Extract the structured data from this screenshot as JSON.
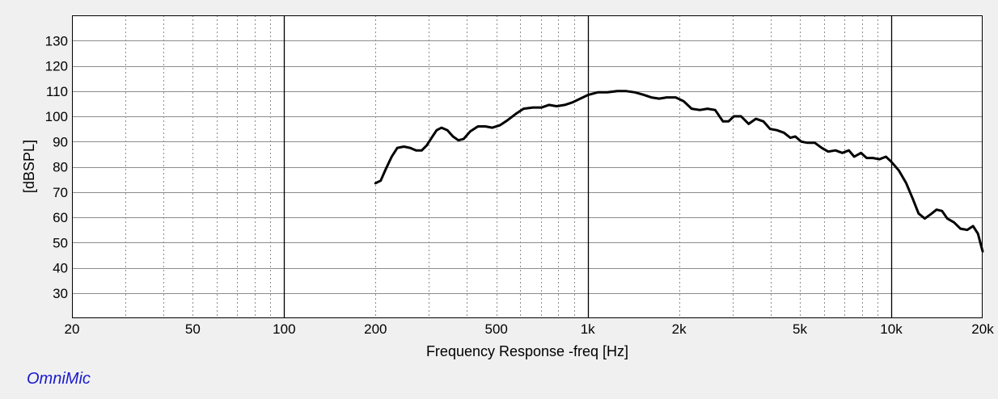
{
  "brand": "OmniMic",
  "colors": {
    "background": "#f0f0f0",
    "plot_background": "#ffffff",
    "trace": "#000000",
    "brand": "#1a1acc"
  },
  "chart_data": {
    "type": "line",
    "title": "",
    "xlabel": "Frequency Response -freq [Hz]",
    "ylabel": "[dBSPL]",
    "xscale": "log",
    "xlim": [
      20,
      20000
    ],
    "ylim": [
      20,
      140
    ],
    "grid": true,
    "x_ticks": [
      {
        "value": 20,
        "label": "20"
      },
      {
        "value": 50,
        "label": "50"
      },
      {
        "value": 100,
        "label": "100"
      },
      {
        "value": 200,
        "label": "200"
      },
      {
        "value": 500,
        "label": "500"
      },
      {
        "value": 1000,
        "label": "1k"
      },
      {
        "value": 2000,
        "label": "2k"
      },
      {
        "value": 5000,
        "label": "5k"
      },
      {
        "value": 10000,
        "label": "10k"
      },
      {
        "value": 20000,
        "label": "20k"
      }
    ],
    "y_ticks": [
      30,
      40,
      50,
      60,
      70,
      80,
      90,
      100,
      110,
      120,
      130
    ],
    "series": [
      {
        "color": "#000000",
        "points": [
          [
            200,
            73.5
          ],
          [
            208,
            74.5
          ],
          [
            216,
            79
          ],
          [
            226,
            84
          ],
          [
            236,
            87.5
          ],
          [
            248,
            88
          ],
          [
            260,
            87.5
          ],
          [
            272,
            86.5
          ],
          [
            284,
            86.5
          ],
          [
            295,
            88.5
          ],
          [
            306,
            91.5
          ],
          [
            318,
            94.5
          ],
          [
            330,
            95.5
          ],
          [
            345,
            94.5
          ],
          [
            360,
            92
          ],
          [
            375,
            90.5
          ],
          [
            390,
            91
          ],
          [
            410,
            94
          ],
          [
            435,
            96
          ],
          [
            460,
            96
          ],
          [
            485,
            95.5
          ],
          [
            515,
            96.5
          ],
          [
            545,
            98.5
          ],
          [
            580,
            101
          ],
          [
            615,
            103
          ],
          [
            660,
            103.5
          ],
          [
            705,
            103.5
          ],
          [
            745,
            104.5
          ],
          [
            790,
            104
          ],
          [
            840,
            104.5
          ],
          [
            890,
            105.5
          ],
          [
            945,
            107
          ],
          [
            1005,
            108.5
          ],
          [
            1080,
            109.5
          ],
          [
            1160,
            109.5
          ],
          [
            1250,
            110
          ],
          [
            1340,
            110
          ],
          [
            1430,
            109.5
          ],
          [
            1530,
            108.5
          ],
          [
            1620,
            107.5
          ],
          [
            1720,
            107
          ],
          [
            1820,
            107.5
          ],
          [
            1950,
            107.5
          ],
          [
            2070,
            106
          ],
          [
            2200,
            103
          ],
          [
            2340,
            102.5
          ],
          [
            2480,
            103
          ],
          [
            2630,
            102.5
          ],
          [
            2790,
            98
          ],
          [
            2910,
            98
          ],
          [
            3030,
            100
          ],
          [
            3200,
            100
          ],
          [
            3390,
            97
          ],
          [
            3580,
            99
          ],
          [
            3790,
            98
          ],
          [
            3990,
            95
          ],
          [
            4200,
            94.5
          ],
          [
            4430,
            93.5
          ],
          [
            4650,
            91.5
          ],
          [
            4830,
            92
          ],
          [
            5050,
            90
          ],
          [
            5300,
            89.5
          ],
          [
            5600,
            89.5
          ],
          [
            5900,
            87.5
          ],
          [
            6200,
            86
          ],
          [
            6550,
            86.5
          ],
          [
            6900,
            85.5
          ],
          [
            7250,
            86.5
          ],
          [
            7550,
            84
          ],
          [
            7950,
            85.5
          ],
          [
            8300,
            83.5
          ],
          [
            8700,
            83.5
          ],
          [
            9150,
            83
          ],
          [
            9600,
            84
          ],
          [
            10000,
            82
          ],
          [
            10600,
            78.5
          ],
          [
            11200,
            73.5
          ],
          [
            11800,
            67
          ],
          [
            12300,
            61.5
          ],
          [
            12900,
            59.5
          ],
          [
            13600,
            61.5
          ],
          [
            14100,
            63
          ],
          [
            14700,
            62.5
          ],
          [
            15300,
            59.5
          ],
          [
            16100,
            58
          ],
          [
            16900,
            55.5
          ],
          [
            17800,
            55
          ],
          [
            18600,
            56.5
          ],
          [
            19300,
            53.5
          ],
          [
            20000,
            46.5
          ]
        ]
      }
    ]
  }
}
